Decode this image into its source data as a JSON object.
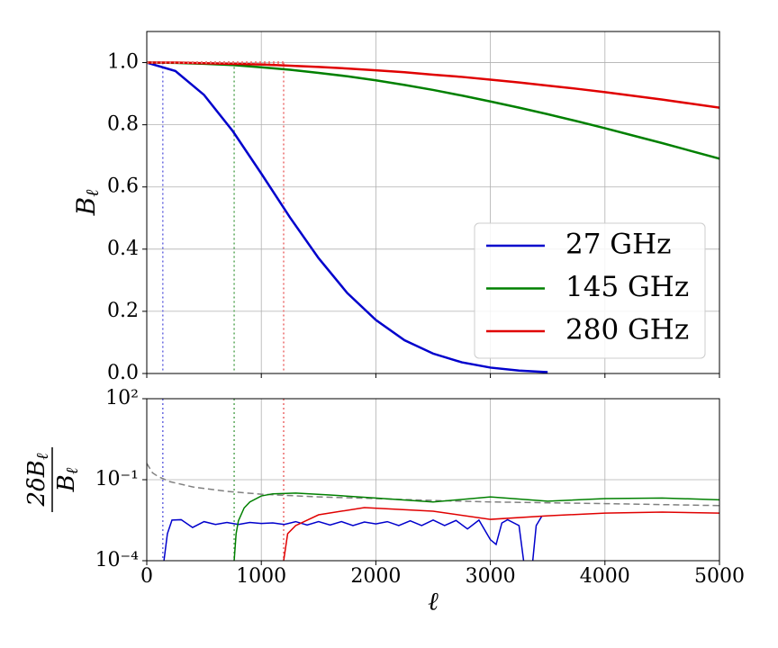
{
  "chart_data": [
    {
      "type": "line",
      "ylabel": "Bℓ",
      "x": [
        0,
        250,
        500,
        750,
        1000,
        1250,
        1500,
        1750,
        2000,
        2250,
        2500,
        2750,
        3000,
        3250,
        3500,
        3750,
        4000,
        4250,
        4500,
        4750,
        5000
      ],
      "series": [
        {
          "name": "27 GHz",
          "color": "#0000cc",
          "values": [
            1.0,
            0.973,
            0.896,
            0.78,
            0.643,
            0.502,
            0.371,
            0.259,
            0.172,
            0.107,
            0.064,
            0.036,
            0.019,
            0.0095,
            0.0045,
            null,
            null,
            null,
            null,
            null,
            null
          ]
        },
        {
          "name": "145 GHz",
          "color": "#008000",
          "values": [
            1.0,
            0.999,
            0.996,
            0.992,
            0.985,
            0.977,
            0.967,
            0.956,
            0.943,
            0.928,
            0.912,
            0.894,
            0.875,
            0.855,
            0.834,
            0.812,
            0.789,
            0.765,
            0.741,
            0.716,
            0.691
          ]
        },
        {
          "name": "280 GHz",
          "color": "#e00000",
          "values": [
            1.0,
            1.0,
            0.998,
            0.996,
            0.994,
            0.99,
            0.986,
            0.981,
            0.975,
            0.969,
            0.961,
            0.954,
            0.945,
            0.936,
            0.926,
            0.916,
            0.905,
            0.893,
            0.881,
            0.868,
            0.855
          ]
        }
      ],
      "xlim": [
        0,
        5000
      ],
      "ylim": [
        0,
        1.1
      ],
      "xticks": [
        0,
        1000,
        2000,
        3000,
        4000,
        5000
      ],
      "yticks": [
        {
          "value": 0,
          "label": "0.0"
        },
        0.2,
        0.4,
        0.6,
        0.8,
        {
          "value": 1,
          "label": "1.0"
        }
      ],
      "grid": true,
      "legend": "lower right",
      "vlines": [
        {
          "x": 140,
          "color": "#6a6ae0"
        },
        {
          "x": 763,
          "color": "#5aa85a"
        },
        {
          "x": 1195,
          "color": "#ec6a6a"
        }
      ]
    },
    {
      "type": "line",
      "xlabel": "ℓ",
      "ylabel": {
        "numerator": "2δBℓ",
        "denominator": "Bℓ"
      },
      "yscale": "log",
      "xlim": [
        0,
        5000
      ],
      "ylim": [
        0.0001,
        100
      ],
      "xticks": [
        0,
        1000,
        2000,
        3000,
        4000,
        5000
      ],
      "yticks": [
        {
          "value": 100,
          "label": "10²"
        },
        {
          "value": 0.1,
          "label": "10⁻¹"
        },
        {
          "value": 0.0001,
          "label": "10⁻⁴"
        }
      ],
      "grid": true,
      "series": [
        {
          "color": "#808080",
          "dashed": true,
          "x": [
            0,
            50,
            100,
            200,
            400,
            700,
            1000,
            1500,
            2000,
            2500,
            3000,
            4000,
            5000
          ],
          "values": [
            0.4,
            0.18,
            0.13,
            0.085,
            0.054,
            0.037,
            0.029,
            0.023,
            0.02,
            0.017,
            0.015,
            0.013,
            0.011
          ]
        },
        {
          "color": "#0000cc",
          "x": [
            150,
            180,
            220,
            300,
            400,
            500,
            600,
            700,
            800,
            900,
            1000,
            1100,
            1200,
            1300,
            1400,
            1500,
            1600,
            1700,
            1800,
            1900,
            2000,
            2100,
            2200,
            2300,
            2400,
            2500,
            2600,
            2700,
            2800,
            2900,
            3000,
            3050,
            3100,
            3150,
            3250,
            3290,
            3330,
            3370,
            3400,
            3450
          ],
          "values": [
            0.0001,
            0.001,
            0.0032,
            0.0033,
            0.0017,
            0.0028,
            0.0022,
            0.0026,
            0.0022,
            0.0026,
            0.0024,
            0.0025,
            0.0022,
            0.0028,
            0.0021,
            0.0028,
            0.0021,
            0.0028,
            0.002,
            0.0027,
            0.0023,
            0.0028,
            0.002,
            0.003,
            0.002,
            0.0032,
            0.002,
            0.0031,
            0.0015,
            0.0032,
            0.0006,
            0.0004,
            0.0025,
            0.0033,
            0.002,
            0.0001,
            null,
            0.0001,
            0.002,
            0.0045
          ]
        },
        {
          "color": "#008000",
          "x": [
            763,
            780,
            800,
            850,
            900,
            1000,
            1100,
            1300,
            1600,
            2000,
            2500,
            3000,
            3500,
            4000,
            4500,
            5000
          ],
          "values": [
            0.0001,
            0.001,
            0.003,
            0.009,
            0.015,
            0.025,
            0.03,
            0.032,
            0.027,
            0.021,
            0.015,
            0.023,
            0.016,
            0.02,
            0.021,
            0.018
          ]
        },
        {
          "color": "#e00000",
          "x": [
            1195,
            1230,
            1300,
            1500,
            1900,
            2500,
            3000,
            3500,
            4000,
            4500,
            5000
          ],
          "values": [
            0.0001,
            0.001,
            0.002,
            0.005,
            0.0093,
            0.0068,
            0.0034,
            0.0046,
            0.0058,
            0.0063,
            0.0058
          ]
        }
      ]
    }
  ]
}
